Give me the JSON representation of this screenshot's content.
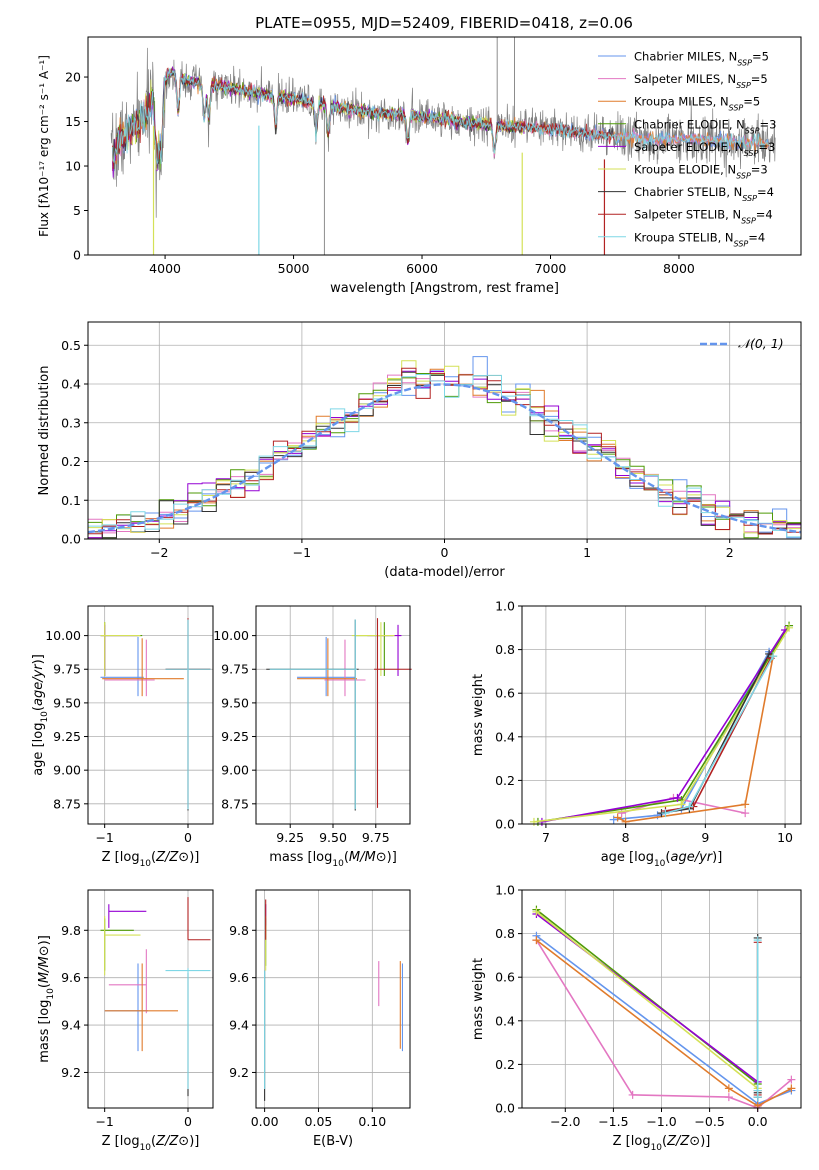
{
  "title": "PLATE=0955, MJD=52409, FIBERID=0418, z=0.06",
  "models": [
    {
      "name": "Chabrier MILES",
      "nssp": "5",
      "color": "#6495ed"
    },
    {
      "name": "Salpeter MILES",
      "nssp": "5",
      "color": "#e377c2"
    },
    {
      "name": "Kroupa MILES",
      "nssp": "5",
      "color": "#e07b2c"
    },
    {
      "name": "Chabrier ELODIE",
      "nssp": "3",
      "color": "#4e9a06"
    },
    {
      "name": "Salpeter ELODIE",
      "nssp": "3",
      "color": "#9400d3"
    },
    {
      "name": "Kroupa ELODIE",
      "nssp": "3",
      "color": "#d4e157"
    },
    {
      "name": "Chabrier STELIB",
      "nssp": "4",
      "color": "#333333"
    },
    {
      "name": "Salpeter STELIB",
      "nssp": "4",
      "color": "#b22222"
    },
    {
      "name": "Kroupa STELIB",
      "nssp": "4",
      "color": "#7fd7e6"
    }
  ],
  "chart_data": [
    {
      "id": "spectrum",
      "type": "line",
      "title": "PLATE=0955, MJD=52409, FIBERID=0418, z=0.06",
      "xlabel": "wavelength [Angstrom, rest frame]",
      "ylabel": "Flux [fλ10⁻¹⁷ erg cm⁻² s⁻¹ A⁻¹]",
      "xlim": [
        3400,
        8950
      ],
      "ylim": [
        0,
        24.5
      ],
      "xticks": [
        4000,
        5000,
        6000,
        7000,
        8000
      ],
      "yticks": [
        0,
        5,
        10,
        15,
        20
      ],
      "grid": false,
      "legend": "top-right",
      "continuum_knots": {
        "x": [
          3580,
          3650,
          3750,
          3850,
          3950,
          4050,
          4200,
          4400,
          4600,
          4800,
          5000,
          5200,
          5400,
          5600,
          5800,
          6000,
          6300,
          6600,
          6900,
          7200,
          7500,
          7800,
          8100,
          8400,
          8700,
          8950
        ],
        "y": [
          10.5,
          13,
          14,
          16,
          19.5,
          20.5,
          19.5,
          19,
          18.5,
          18,
          17.5,
          17,
          16.5,
          16,
          15.8,
          15.6,
          15,
          14.5,
          14.3,
          13.8,
          13.3,
          13,
          13.1,
          12.7,
          12.5,
          12.3
        ]
      },
      "absorption_lines_x": [
        3934,
        3969,
        4101,
        4305,
        4340,
        4861,
        5175,
        5270,
        5890,
        6563
      ],
      "model_spikes": [
        {
          "model": "Kroupa ELODIE",
          "x": 3910,
          "bottom": 0
        },
        {
          "model": "Kroupa STELIB",
          "x": 4730,
          "bottom": 0
        },
        {
          "model": "Kroupa ELODIE",
          "x": 6780,
          "bottom": 0
        },
        {
          "model": "Salpeter STELIB",
          "x": 7420,
          "bottom": 0
        }
      ],
      "data_spikes": [
        {
          "x": 5240,
          "bottom": 0
        },
        {
          "x": 6585,
          "top": 24.5
        },
        {
          "x": 6720,
          "top": 24.5
        }
      ]
    },
    {
      "id": "residuals",
      "type": "histogram",
      "xlabel": "(data-model)/error",
      "ylabel": "Normed distribution",
      "xlim": [
        -2.5,
        2.5
      ],
      "ylim": [
        0,
        0.56
      ],
      "xticks": [
        -2,
        -1,
        0,
        1,
        2
      ],
      "yticks": [
        0.0,
        0.1,
        0.2,
        0.3,
        0.4,
        0.5
      ],
      "grid": true,
      "legend": "top-right",
      "reference_curve": {
        "label": "𝒩(0, 1)",
        "color": "#6495ed",
        "mean": 0,
        "sigma": 1
      },
      "bin_width": 0.1
    },
    {
      "id": "age-vs-Z",
      "type": "errorbar",
      "xlabel": "Z [log10(Z/Z⊙)]",
      "ylabel": "age  [log10(age/yr)]",
      "xlim": [
        -1.2,
        0.3
      ],
      "ylim": [
        8.6,
        10.22
      ],
      "xticks": [
        -1,
        0
      ],
      "yticks": [
        8.75,
        9.0,
        9.25,
        9.5,
        9.75,
        10.0
      ],
      "grid": true,
      "points": [
        {
          "model": "Chabrier MILES",
          "x": -0.6,
          "xerr": [
            0.45,
            0.07
          ],
          "y": 9.69,
          "yerr": [
            0.14,
            0.3
          ]
        },
        {
          "model": "Salpeter MILES",
          "x": -0.5,
          "xerr": [
            0.5,
            0.1
          ],
          "y": 9.67,
          "yerr": [
            0.12,
            0.3
          ]
        },
        {
          "model": "Kroupa MILES",
          "x": -0.55,
          "xerr": [
            0.48,
            0.5
          ],
          "y": 9.68,
          "yerr": [
            0.13,
            0.3
          ]
        },
        {
          "model": "Chabrier ELODIE",
          "x": -1.0,
          "xerr": [
            0.05,
            0.45
          ],
          "y": 10.0,
          "yerr": [
            0.3,
            0.1
          ]
        },
        {
          "model": "Salpeter ELODIE",
          "x": -1.0,
          "xerr": [
            0.05,
            0.4
          ],
          "y": 10.0,
          "yerr": [
            0.3,
            0.08
          ]
        },
        {
          "model": "Kroupa ELODIE",
          "x": -1.0,
          "xerr": [
            0.05,
            0.43
          ],
          "y": 10.0,
          "yerr": [
            0.3,
            0.1
          ]
        },
        {
          "model": "Chabrier STELIB",
          "x": 0.0,
          "xerr": [
            0.27,
            0.27
          ],
          "y": 9.75,
          "yerr": [
            1.05,
            0.37
          ]
        },
        {
          "model": "Salpeter STELIB",
          "x": 0.0,
          "xerr": [
            0.27,
            0.27
          ],
          "y": 9.75,
          "yerr": [
            1.03,
            0.38
          ]
        },
        {
          "model": "Kroupa STELIB",
          "x": 0.0,
          "xerr": [
            0.27,
            0.27
          ],
          "y": 9.75,
          "yerr": [
            1.04,
            0.37
          ]
        }
      ]
    },
    {
      "id": "age-vs-mass",
      "type": "errorbar",
      "xlabel": "mass [log10(M/M⊙)]",
      "ylabel": "",
      "xlim": [
        9.05,
        9.95
      ],
      "ylim": [
        8.6,
        10.22
      ],
      "xticks": [
        9.25,
        9.5,
        9.75
      ],
      "yticks": [
        8.75,
        9.0,
        9.25,
        9.5,
        9.75,
        10.0
      ],
      "grid": true,
      "points": [
        {
          "model": "Chabrier MILES",
          "x": 9.46,
          "xerr": [
            0.17,
            0.17
          ],
          "y": 9.69,
          "yerr": [
            0.14,
            0.3
          ]
        },
        {
          "model": "Salpeter MILES",
          "x": 9.57,
          "xerr": [
            0.12,
            0.12
          ],
          "y": 9.67,
          "yerr": [
            0.12,
            0.3
          ]
        },
        {
          "model": "Kroupa MILES",
          "x": 9.47,
          "xerr": [
            0.18,
            0.17
          ],
          "y": 9.68,
          "yerr": [
            0.13,
            0.3
          ]
        },
        {
          "model": "Chabrier ELODIE",
          "x": 9.8,
          "xerr": [
            0.17,
            0.05
          ],
          "y": 10.0,
          "yerr": [
            0.3,
            0.1
          ]
        },
        {
          "model": "Salpeter ELODIE",
          "x": 9.88,
          "xerr": [
            0.18,
            0.02
          ],
          "y": 10.0,
          "yerr": [
            0.3,
            0.08
          ]
        },
        {
          "model": "Kroupa ELODIE",
          "x": 9.78,
          "xerr": [
            0.17,
            0.08
          ],
          "y": 10.0,
          "yerr": [
            0.3,
            0.1
          ]
        },
        {
          "model": "Chabrier STELIB",
          "x": 9.63,
          "xerr": [
            0.52,
            0.02
          ],
          "y": 9.75,
          "yerr": [
            1.05,
            0.37
          ]
        },
        {
          "model": "Salpeter STELIB",
          "x": 9.76,
          "xerr": [
            0.02,
            0.2
          ],
          "y": 9.75,
          "yerr": [
            1.03,
            0.38
          ]
        },
        {
          "model": "Kroupa STELIB",
          "x": 9.63,
          "xerr": [
            0.5,
            0.01
          ],
          "y": 9.75,
          "yerr": [
            1.04,
            0.37
          ]
        }
      ]
    },
    {
      "id": "massweight-vs-age",
      "type": "line",
      "xlabel": "age  [log10(age/yr)]",
      "ylabel": "mass weight",
      "xlim": [
        6.7,
        10.2
      ],
      "ylim": [
        0,
        1.0
      ],
      "xticks": [
        7,
        8,
        9,
        10
      ],
      "yticks": [
        0.0,
        0.2,
        0.4,
        0.6,
        0.8,
        1.0
      ],
      "grid": true,
      "series": [
        {
          "model": "Chabrier MILES",
          "x": [
            7.85,
            8.4,
            8.7,
            9.8
          ],
          "y": [
            0.02,
            0.04,
            0.07,
            0.79
          ]
        },
        {
          "model": "Salpeter MILES",
          "x": [
            7.95,
            8.6,
            9.5
          ],
          "y": [
            0.05,
            0.12,
            0.05
          ]
        },
        {
          "model": "Kroupa MILES",
          "x": [
            7.9,
            8.0,
            9.5,
            9.85
          ],
          "y": [
            0.03,
            0.01,
            0.09,
            0.77
          ]
        },
        {
          "model": "Chabrier ELODIE",
          "x": [
            6.9,
            8.7,
            10.05
          ],
          "y": [
            0.01,
            0.11,
            0.91
          ]
        },
        {
          "model": "Salpeter ELODIE",
          "x": [
            6.95,
            8.65,
            10.0
          ],
          "y": [
            0.01,
            0.12,
            0.89
          ]
        },
        {
          "model": "Kroupa ELODIE",
          "x": [
            6.85,
            8.7,
            10.05
          ],
          "y": [
            0.01,
            0.09,
            0.9
          ]
        },
        {
          "model": "Chabrier STELIB",
          "x": [
            8.45,
            8.8,
            9.8
          ],
          "y": [
            0.05,
            0.07,
            0.78
          ]
        },
        {
          "model": "Salpeter STELIB",
          "x": [
            8.5,
            8.85,
            9.82
          ],
          "y": [
            0.06,
            0.08,
            0.76
          ]
        },
        {
          "model": "Kroupa STELIB",
          "x": [
            8.5,
            8.8,
            9.85
          ],
          "y": [
            0.05,
            0.08,
            0.77
          ]
        }
      ]
    },
    {
      "id": "mass-vs-Z",
      "type": "errorbar",
      "xlabel": "Z [log10(Z/Z⊙)]",
      "ylabel": "mass [log10(M/M⊙)]",
      "xlim": [
        -1.2,
        0.3
      ],
      "ylim": [
        9.05,
        9.97
      ],
      "xticks": [
        -1,
        0
      ],
      "yticks": [
        9.2,
        9.4,
        9.6,
        9.8
      ],
      "grid": true,
      "points": [
        {
          "model": "Chabrier MILES",
          "x": -0.6,
          "xerr": [
            0.4,
            0.12
          ],
          "y": 9.46,
          "yerr": [
            0.17,
            0.2
          ]
        },
        {
          "model": "Salpeter MILES",
          "x": -0.5,
          "xerr": [
            0.45,
            0.0
          ],
          "y": 9.57,
          "yerr": [
            0.12,
            0.15
          ]
        },
        {
          "model": "Kroupa MILES",
          "x": -0.55,
          "xerr": [
            0.45,
            0.43
          ],
          "y": 9.46,
          "yerr": [
            0.17,
            0.2
          ]
        },
        {
          "model": "Chabrier ELODIE",
          "x": -1.0,
          "xerr": [
            0.05,
            0.35
          ],
          "y": 9.8,
          "yerr": [
            0.17,
            0.05
          ]
        },
        {
          "model": "Salpeter ELODIE",
          "x": -0.95,
          "xerr": [
            0.0,
            0.45
          ],
          "y": 9.88,
          "yerr": [
            0.07,
            0.03
          ]
        },
        {
          "model": "Kroupa ELODIE",
          "x": -1.0,
          "xerr": [
            0.0,
            0.43
          ],
          "y": 9.78,
          "yerr": [
            0.17,
            0.08
          ]
        },
        {
          "model": "Chabrier STELIB",
          "x": 0.0,
          "xerr": [
            0.0,
            0.0
          ],
          "y": 9.62,
          "yerr": [
            0.52,
            0.0
          ]
        },
        {
          "model": "Salpeter STELIB",
          "x": 0.0,
          "xerr": [
            0.0,
            0.27
          ],
          "y": 9.76,
          "yerr": [
            0.0,
            0.18
          ]
        },
        {
          "model": "Kroupa STELIB",
          "x": 0.0,
          "xerr": [
            0.27,
            0.27
          ],
          "y": 9.63,
          "yerr": [
            0.5,
            0.01
          ]
        }
      ]
    },
    {
      "id": "mass-vs-EBV",
      "type": "errorbar",
      "xlabel": "E(B-V)",
      "ylabel": "",
      "xlim": [
        -0.008,
        0.135
      ],
      "ylim": [
        9.05,
        9.97
      ],
      "xticks": [
        0.0,
        0.05,
        0.1
      ],
      "yticks": [
        9.2,
        9.4,
        9.6,
        9.8
      ],
      "grid": true,
      "points": [
        {
          "model": "Chabrier MILES",
          "x": 0.128,
          "yerr": [
            0.17,
            0.2
          ],
          "y": 9.46
        },
        {
          "model": "Salpeter MILES",
          "x": 0.106,
          "yerr": [
            0.09,
            0.1
          ],
          "y": 9.57
        },
        {
          "model": "Kroupa MILES",
          "x": 0.126,
          "yerr": [
            0.17,
            0.2
          ],
          "y": 9.47
        },
        {
          "model": "Chabrier ELODIE",
          "x": 0.001,
          "yerr": [
            0.15,
            0.05
          ],
          "y": 9.8
        },
        {
          "model": "Salpeter ELODIE",
          "x": 0.001,
          "yerr": [
            0.06,
            0.03
          ],
          "y": 9.88
        },
        {
          "model": "Kroupa ELODIE",
          "x": 0.001,
          "yerr": [
            0.15,
            0.08
          ],
          "y": 9.78
        },
        {
          "model": "Chabrier STELIB",
          "x": 0.0,
          "yerr": [
            0.55,
            0.0
          ],
          "y": 9.63
        },
        {
          "model": "Salpeter STELIB",
          "x": 0.001,
          "yerr": [
            0.0,
            0.17
          ],
          "y": 9.76
        },
        {
          "model": "Kroupa STELIB",
          "x": 0.0,
          "yerr": [
            0.5,
            0.0
          ],
          "y": 9.63
        }
      ]
    },
    {
      "id": "massweight-vs-Z",
      "type": "line",
      "xlabel": "Z [log10(Z/Z⊙)]",
      "ylabel": "mass weight",
      "xlim": [
        -2.45,
        0.45
      ],
      "ylim": [
        0,
        1.0
      ],
      "xticks": [
        -2.0,
        -1.5,
        -1.0,
        -0.5,
        0.0
      ],
      "yticks": [
        0.0,
        0.2,
        0.4,
        0.6,
        0.8,
        1.0
      ],
      "grid": true,
      "series": [
        {
          "model": "Chabrier MILES",
          "x": [
            -2.3,
            0.0,
            0.35
          ],
          "y": [
            0.79,
            0.02,
            0.08
          ]
        },
        {
          "model": "Salpeter MILES",
          "x": [
            -2.3,
            -1.3,
            -0.3,
            0.0,
            0.35
          ],
          "y": [
            0.77,
            0.06,
            0.05,
            0.0,
            0.13
          ]
        },
        {
          "model": "Kroupa MILES",
          "x": [
            -2.3,
            -0.3,
            0.0,
            0.35
          ],
          "y": [
            0.77,
            0.09,
            0.01,
            0.09
          ]
        },
        {
          "model": "Chabrier ELODIE",
          "x": [
            -2.3,
            0.0
          ],
          "y": [
            0.91,
            0.11
          ]
        },
        {
          "model": "Salpeter ELODIE",
          "x": [
            -2.3,
            0.0
          ],
          "y": [
            0.89,
            0.12
          ]
        },
        {
          "model": "Kroupa ELODIE",
          "x": [
            -2.3,
            0.0
          ],
          "y": [
            0.9,
            0.09
          ]
        },
        {
          "model": "Chabrier STELIB",
          "x": [
            0.0,
            0.0,
            0.0
          ],
          "y": [
            0.78,
            0.05,
            0.07
          ]
        },
        {
          "model": "Salpeter STELIB",
          "x": [
            0.0,
            0.0,
            0.0
          ],
          "y": [
            0.76,
            0.06,
            0.08
          ]
        },
        {
          "model": "Kroupa STELIB",
          "x": [
            0.0,
            0.0,
            0.0
          ],
          "y": [
            0.77,
            0.05,
            0.08
          ]
        }
      ]
    }
  ]
}
